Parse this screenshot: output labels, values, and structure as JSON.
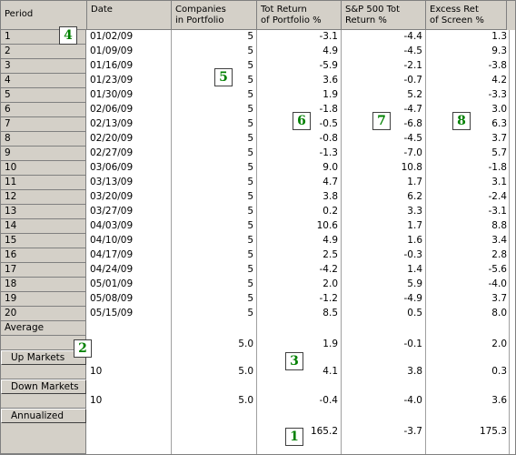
{
  "headers": [
    "Period",
    "Date",
    "Companies\nin Portfolio",
    "Tot Return\nof Portfolio %",
    "S&P 500 Tot\nReturn %",
    "Excess Ret\nof Screen %"
  ],
  "rows": [
    {
      "period": "1",
      "date": "01/02/09",
      "companies": "5",
      "tot": "-3.1",
      "sp": "-4.4",
      "excess": "1.3"
    },
    {
      "period": "2",
      "date": "01/09/09",
      "companies": "5",
      "tot": "4.9",
      "sp": "-4.5",
      "excess": "9.3"
    },
    {
      "period": "3",
      "date": "01/16/09",
      "companies": "5",
      "tot": "-5.9",
      "sp": "-2.1",
      "excess": "-3.8"
    },
    {
      "period": "4",
      "date": "01/23/09",
      "companies": "5",
      "tot": "3.6",
      "sp": "-0.7",
      "excess": "4.2"
    },
    {
      "period": "5",
      "date": "01/30/09",
      "companies": "5",
      "tot": "1.9",
      "sp": "5.2",
      "excess": "-3.3"
    },
    {
      "period": "6",
      "date": "02/06/09",
      "companies": "5",
      "tot": "-1.8",
      "sp": "-4.7",
      "excess": "3.0"
    },
    {
      "period": "7",
      "date": "02/13/09",
      "companies": "5",
      "tot": "-0.5",
      "sp": "-6.8",
      "excess": "6.3"
    },
    {
      "period": "8",
      "date": "02/20/09",
      "companies": "5",
      "tot": "-0.8",
      "sp": "-4.5",
      "excess": "3.7"
    },
    {
      "period": "9",
      "date": "02/27/09",
      "companies": "5",
      "tot": "-1.3",
      "sp": "-7.0",
      "excess": "5.7"
    },
    {
      "period": "10",
      "date": "03/06/09",
      "companies": "5",
      "tot": "9.0",
      "sp": "10.8",
      "excess": "-1.8"
    },
    {
      "period": "11",
      "date": "03/13/09",
      "companies": "5",
      "tot": "4.7",
      "sp": "1.7",
      "excess": "3.1"
    },
    {
      "period": "12",
      "date": "03/20/09",
      "companies": "5",
      "tot": "3.8",
      "sp": "6.2",
      "excess": "-2.4"
    },
    {
      "period": "13",
      "date": "03/27/09",
      "companies": "5",
      "tot": "0.2",
      "sp": "3.3",
      "excess": "-3.1"
    },
    {
      "period": "14",
      "date": "04/03/09",
      "companies": "5",
      "tot": "10.6",
      "sp": "1.7",
      "excess": "8.8"
    },
    {
      "period": "15",
      "date": "04/10/09",
      "companies": "5",
      "tot": "4.9",
      "sp": "1.6",
      "excess": "3.4"
    },
    {
      "period": "16",
      "date": "04/17/09",
      "companies": "5",
      "tot": "2.5",
      "sp": "-0.3",
      "excess": "2.8"
    },
    {
      "period": "17",
      "date": "04/24/09",
      "companies": "5",
      "tot": "-4.2",
      "sp": "1.4",
      "excess": "-5.6"
    },
    {
      "period": "18",
      "date": "05/01/09",
      "companies": "5",
      "tot": "2.0",
      "sp": "5.9",
      "excess": "-4.0"
    },
    {
      "period": "19",
      "date": "05/08/09",
      "companies": "5",
      "tot": "-1.2",
      "sp": "-4.9",
      "excess": "3.7"
    },
    {
      "period": "20",
      "date": "05/15/09",
      "companies": "5",
      "tot": "8.5",
      "sp": "0.5",
      "excess": "8.0"
    }
  ],
  "summary": {
    "average": {
      "label": "Average",
      "companies": "5.0",
      "tot": "1.9",
      "sp": "-0.1",
      "excess": "2.0"
    },
    "up": {
      "label": "Up Markets",
      "count": "10",
      "companies": "5.0",
      "tot": "4.1",
      "sp": "3.8",
      "excess": "0.3"
    },
    "down": {
      "label": "Down Markets",
      "count": "10",
      "companies": "5.0",
      "tot": "-0.4",
      "sp": "-4.0",
      "excess": "3.6"
    },
    "annualized": {
      "label": "Annualized",
      "tot": "165.2",
      "sp": "-3.7",
      "excess": "175.3"
    }
  },
  "markers": [
    "1",
    "2",
    "3",
    "4",
    "5",
    "6",
    "7",
    "8"
  ],
  "colors": {
    "header_bg": "#d4d0c8",
    "marker_text": "#008000"
  }
}
